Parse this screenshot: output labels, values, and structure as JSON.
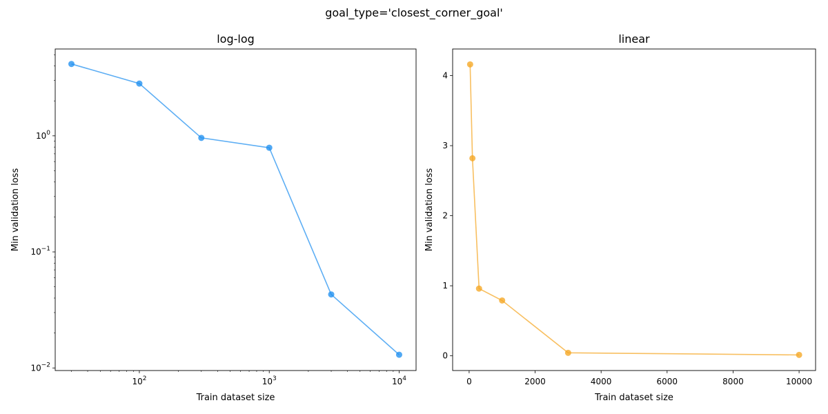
{
  "suptitle": "goal_type='closest_corner_goal'",
  "chart_data": [
    {
      "type": "line",
      "title": "log-log",
      "xlabel": "Train dataset size",
      "ylabel": "Min validation loss",
      "xscale": "log",
      "yscale": "log",
      "xlim": [
        22.5,
        13500
      ],
      "ylim": [
        0.0095,
        5.6
      ],
      "x_ticks": [
        {
          "value": 100,
          "base": "10",
          "exp": "2"
        },
        {
          "value": 1000,
          "base": "10",
          "exp": "3"
        },
        {
          "value": 10000,
          "base": "10",
          "exp": "4"
        }
      ],
      "y_ticks": [
        {
          "value": 0.01,
          "base": "10",
          "exp": "−2"
        },
        {
          "value": 0.1,
          "base": "10",
          "exp": "−1"
        },
        {
          "value": 1,
          "base": "10",
          "exp": "0"
        }
      ],
      "color": "#1f8ff0",
      "grid": false,
      "series": [
        {
          "x": [
            30,
            100,
            300,
            1000,
            3000,
            10000
          ],
          "y": [
            4.16,
            2.82,
            0.96,
            0.79,
            0.043,
            0.013
          ]
        }
      ]
    },
    {
      "type": "line",
      "title": "linear",
      "xlabel": "Train dataset size",
      "ylabel": "Min validation loss",
      "xscale": "linear",
      "yscale": "linear",
      "xlim": [
        -500,
        10500
      ],
      "ylim": [
        -0.21,
        4.38
      ],
      "x_ticks": [
        {
          "value": 0,
          "label": "0"
        },
        {
          "value": 2000,
          "label": "2000"
        },
        {
          "value": 4000,
          "label": "4000"
        },
        {
          "value": 6000,
          "label": "6000"
        },
        {
          "value": 8000,
          "label": "8000"
        },
        {
          "value": 10000,
          "label": "10000"
        }
      ],
      "y_ticks": [
        {
          "value": 0,
          "label": "0"
        },
        {
          "value": 1,
          "label": "1"
        },
        {
          "value": 2,
          "label": "2"
        },
        {
          "value": 3,
          "label": "3"
        },
        {
          "value": 4,
          "label": "4"
        }
      ],
      "color": "#f5a623",
      "grid": false,
      "series": [
        {
          "x": [
            30,
            100,
            300,
            1000,
            3000,
            10000
          ],
          "y": [
            4.16,
            2.82,
            0.96,
            0.79,
            0.043,
            0.013
          ]
        }
      ]
    }
  ]
}
